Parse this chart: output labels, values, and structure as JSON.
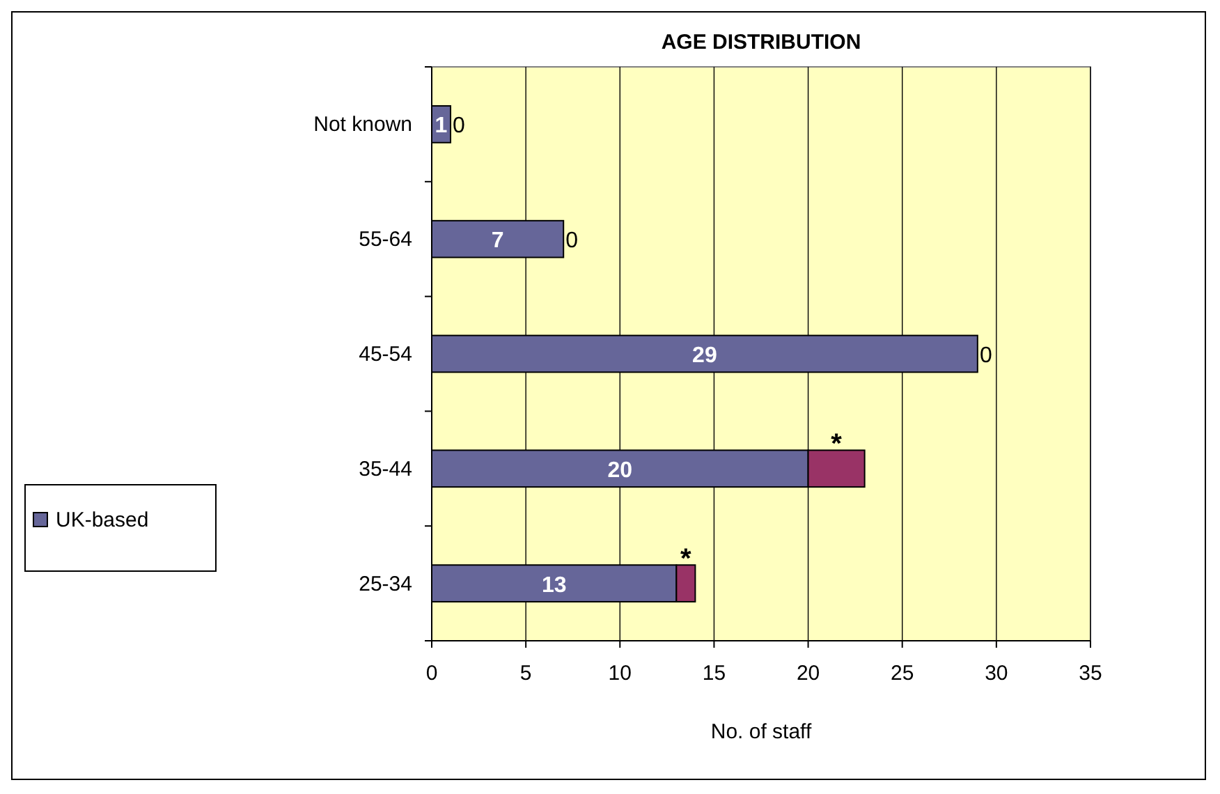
{
  "chart_data": {
    "type": "bar",
    "orientation": "horizontal",
    "stacked": true,
    "title": "AGE DISTRIBUTION",
    "xlabel": "No. of staff",
    "categories": [
      "Not known",
      "55-64",
      "45-54",
      "35-44",
      "25-34"
    ],
    "series": [
      {
        "name": "UK-based",
        "color": "#666699",
        "values": [
          1,
          7,
          29,
          20,
          13
        ],
        "value_labels": [
          "1",
          "7",
          "29",
          "20",
          "13"
        ]
      },
      {
        "color": "#993366",
        "values": [
          0,
          0,
          0,
          3,
          1
        ],
        "value_labels": [
          "0",
          "0",
          "0",
          "*",
          "*"
        ]
      }
    ],
    "xlim": [
      0,
      35
    ],
    "xticks": [
      0,
      5,
      10,
      15,
      20,
      25,
      30,
      35
    ],
    "grid": "x",
    "legend": "left"
  }
}
